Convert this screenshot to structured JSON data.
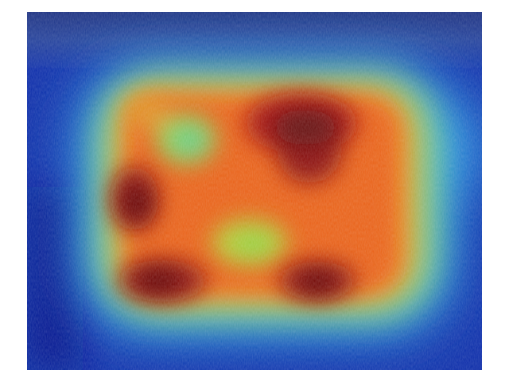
{
  "image": {
    "kind": "ultrasound-heatmap-overlay",
    "colormap": "jet",
    "colors": {
      "background": "#ffffff",
      "low": "#00008f",
      "mid_low": "#00a0ff",
      "mid": "#30d890",
      "mid_high": "#f0c020",
      "high": "#e03010",
      "peak": "#600000"
    }
  }
}
